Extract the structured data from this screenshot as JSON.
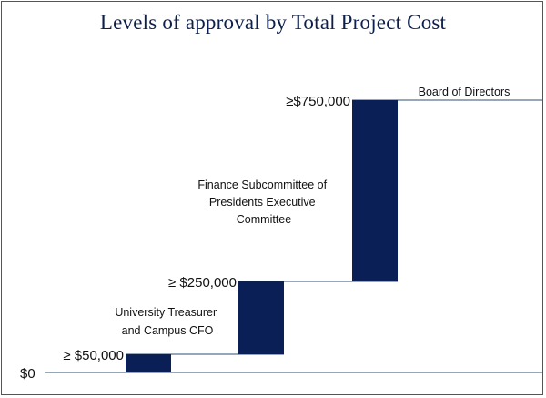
{
  "chart_data": {
    "type": "bar",
    "title": "Levels of approval by Total Project Cost",
    "threshold_labels": [
      "$0",
      "≥ $50,000",
      "≥ $250,000",
      "≥$750,000"
    ],
    "categories": [
      "University Treasurer and Campus CFO",
      "Finance Subcommittee of Presidents Executive Committee",
      "Board of Directors"
    ],
    "category_lines": [
      [
        "University Treasurer",
        "and Campus CFO"
      ],
      [
        "Finance Subcommittee  of",
        "Presidents Executive",
        "Committee"
      ],
      [
        "Board of Directors"
      ]
    ],
    "steps": [
      {
        "from": 0,
        "to": 50000
      },
      {
        "from": 50000,
        "to": 250000
      },
      {
        "from": 250000,
        "to": 750000
      }
    ],
    "bar_color": "#0b1f57",
    "line_color": "#2f4f6f",
    "grid": false
  }
}
